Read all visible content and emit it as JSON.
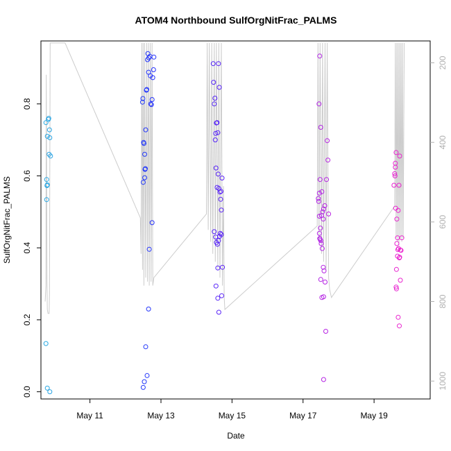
{
  "chart_data": {
    "type": "scatter",
    "title": "ATOM4 Northbound SulfOrgNitFrac_PALMS",
    "xlabel": "Date",
    "ylabel": "SulfOrgNitFrac_PALMS",
    "xlim": [
      9.62,
      20.58
    ],
    "ylim": [
      -0.02,
      0.975
    ],
    "y2lim": [
      1045,
      145
    ],
    "x_ticks": [
      {
        "value": 11,
        "label": "May 11"
      },
      {
        "value": 13,
        "label": "May 13"
      },
      {
        "value": 15,
        "label": "May 15"
      },
      {
        "value": 17,
        "label": "May 17"
      },
      {
        "value": 19,
        "label": "May 19"
      }
    ],
    "y_ticks": [
      {
        "value": 0.0,
        "label": "0.0"
      },
      {
        "value": 0.2,
        "label": "0.2"
      },
      {
        "value": 0.4,
        "label": "0.4"
      },
      {
        "value": 0.6,
        "label": "0.6"
      },
      {
        "value": 0.8,
        "label": "0.8"
      }
    ],
    "y2_ticks": [
      {
        "value": 200,
        "label": "200"
      },
      {
        "value": 400,
        "label": "400"
      },
      {
        "value": 600,
        "label": "600"
      },
      {
        "value": 800,
        "label": "800"
      },
      {
        "value": 1000,
        "label": "1000"
      }
    ],
    "grid": false,
    "legend": "none",
    "point_style": "open-circle",
    "color_scale": [
      "#29abe2",
      "#2222ff",
      "#9922ee",
      "#ee22cc"
    ],
    "line_color": "#cccccc",
    "points": [
      [
        9.76,
        0.748
      ],
      [
        9.79,
        0.573
      ],
      [
        9.8,
        0.71
      ],
      [
        9.83,
        0.757
      ],
      [
        9.84,
        0.76
      ],
      [
        9.86,
        0.728
      ],
      [
        9.78,
        0.59
      ],
      [
        9.8,
        0.575
      ],
      [
        9.85,
        0.66
      ],
      [
        9.87,
        0.706
      ],
      [
        9.89,
        0.655
      ],
      [
        9.78,
        0.534
      ],
      [
        9.76,
        0.134
      ],
      [
        9.8,
        0.01
      ],
      [
        9.87,
        0.0
      ],
      [
        12.48,
        0.805
      ],
      [
        12.49,
        0.815
      ],
      [
        12.51,
        0.693
      ],
      [
        12.52,
        0.69
      ],
      [
        12.54,
        0.66
      ],
      [
        12.55,
        0.618
      ],
      [
        12.56,
        0.62
      ],
      [
        12.57,
        0.728
      ],
      [
        12.59,
        0.838
      ],
      [
        12.6,
        0.84
      ],
      [
        12.62,
        0.923
      ],
      [
        12.63,
        0.94
      ],
      [
        12.65,
        0.888
      ],
      [
        12.66,
        0.928
      ],
      [
        12.69,
        0.932
      ],
      [
        12.7,
        0.878
      ],
      [
        12.71,
        0.8
      ],
      [
        12.73,
        0.798
      ],
      [
        12.75,
        0.812
      ],
      [
        12.77,
        0.873
      ],
      [
        12.79,
        0.895
      ],
      [
        12.8,
        0.93
      ],
      [
        12.5,
        0.582
      ],
      [
        12.54,
        0.595
      ],
      [
        12.67,
        0.396
      ],
      [
        12.75,
        0.47
      ],
      [
        12.65,
        0.23
      ],
      [
        12.57,
        0.125
      ],
      [
        12.61,
        0.045
      ],
      [
        12.53,
        0.028
      ],
      [
        12.5,
        0.012
      ],
      [
        14.47,
        0.912
      ],
      [
        14.48,
        0.86
      ],
      [
        14.5,
        0.8
      ],
      [
        14.52,
        0.816
      ],
      [
        14.53,
        0.7
      ],
      [
        14.54,
        0.718
      ],
      [
        14.56,
        0.747
      ],
      [
        14.58,
        0.748
      ],
      [
        14.6,
        0.72
      ],
      [
        14.62,
        0.912
      ],
      [
        14.64,
        0.846
      ],
      [
        14.55,
        0.622
      ],
      [
        14.58,
        0.568
      ],
      [
        14.61,
        0.605
      ],
      [
        14.63,
        0.565
      ],
      [
        14.66,
        0.555
      ],
      [
        14.68,
        0.535
      ],
      [
        14.7,
        0.505
      ],
      [
        14.72,
        0.594
      ],
      [
        14.69,
        0.557
      ],
      [
        14.5,
        0.445
      ],
      [
        14.54,
        0.43
      ],
      [
        14.56,
        0.415
      ],
      [
        14.59,
        0.41
      ],
      [
        14.62,
        0.42
      ],
      [
        14.65,
        0.432
      ],
      [
        14.67,
        0.44
      ],
      [
        14.7,
        0.437
      ],
      [
        14.6,
        0.344
      ],
      [
        14.73,
        0.346
      ],
      [
        14.55,
        0.294
      ],
      [
        14.6,
        0.26
      ],
      [
        14.71,
        0.267
      ],
      [
        14.63,
        0.221
      ]
    ],
    "points_b": [
      [
        17.43,
        0.537
      ],
      [
        17.45,
        0.8
      ],
      [
        17.47,
        0.933
      ],
      [
        17.5,
        0.735
      ],
      [
        17.46,
        0.552
      ],
      [
        17.44,
        0.529
      ],
      [
        17.46,
        0.488
      ],
      [
        17.52,
        0.49
      ],
      [
        17.55,
        0.5
      ],
      [
        17.58,
        0.508
      ],
      [
        17.61,
        0.517
      ],
      [
        17.48,
        0.59
      ],
      [
        17.53,
        0.556
      ],
      [
        17.57,
        0.48
      ],
      [
        17.49,
        0.455
      ],
      [
        17.46,
        0.44
      ],
      [
        17.48,
        0.424
      ],
      [
        17.5,
        0.42
      ],
      [
        17.47,
        0.426
      ],
      [
        17.51,
        0.412
      ],
      [
        17.54,
        0.398
      ],
      [
        17.57,
        0.346
      ],
      [
        17.59,
        0.336
      ],
      [
        17.5,
        0.312
      ],
      [
        17.62,
        0.305
      ],
      [
        17.53,
        0.262
      ],
      [
        17.58,
        0.264
      ],
      [
        17.7,
        0.644
      ],
      [
        17.68,
        0.698
      ],
      [
        17.66,
        0.59
      ],
      [
        17.72,
        0.494
      ],
      [
        17.64,
        0.168
      ],
      [
        17.58,
        0.034
      ],
      [
        19.56,
        0.574
      ],
      [
        19.58,
        0.606
      ],
      [
        19.6,
        0.635
      ],
      [
        19.62,
        0.665
      ],
      [
        19.59,
        0.6
      ],
      [
        19.6,
        0.624
      ],
      [
        19.61,
        0.51
      ],
      [
        19.64,
        0.48
      ],
      [
        19.66,
        0.428
      ],
      [
        19.68,
        0.504
      ],
      [
        19.7,
        0.574
      ],
      [
        19.72,
        0.655
      ],
      [
        19.64,
        0.412
      ],
      [
        19.67,
        0.395
      ],
      [
        19.69,
        0.398
      ],
      [
        19.72,
        0.374
      ],
      [
        19.74,
        0.394
      ],
      [
        19.66,
        0.377
      ],
      [
        19.71,
        0.372
      ],
      [
        19.76,
        0.393
      ],
      [
        19.78,
        0.428
      ],
      [
        19.63,
        0.34
      ],
      [
        19.74,
        0.31
      ],
      [
        19.62,
        0.291
      ],
      [
        19.63,
        0.286
      ],
      [
        19.68,
        0.207
      ],
      [
        19.71,
        0.183
      ]
    ],
    "altitude_track": [
      [
        9.74,
        800
      ],
      [
        9.76,
        760
      ],
      [
        9.77,
        230
      ],
      [
        9.79,
        750
      ],
      [
        9.8,
        820
      ],
      [
        9.82,
        830
      ],
      [
        9.85,
        830
      ],
      [
        9.86,
        780
      ],
      [
        9.88,
        150
      ],
      [
        10.3,
        150
      ],
      [
        12.42,
        590
      ],
      [
        12.44,
        680
      ],
      [
        12.46,
        150
      ],
      [
        12.48,
        720
      ],
      [
        12.5,
        150
      ],
      [
        12.52,
        760
      ],
      [
        12.54,
        150
      ],
      [
        12.57,
        740
      ],
      [
        12.6,
        150
      ],
      [
        12.62,
        750
      ],
      [
        12.65,
        150
      ],
      [
        12.67,
        760
      ],
      [
        12.7,
        150
      ],
      [
        12.72,
        750
      ],
      [
        12.75,
        150
      ],
      [
        12.77,
        760
      ],
      [
        12.8,
        740
      ],
      [
        14.28,
        580
      ],
      [
        14.3,
        150
      ],
      [
        14.33,
        620
      ],
      [
        14.36,
        150
      ],
      [
        14.4,
        650
      ],
      [
        14.43,
        150
      ],
      [
        14.46,
        680
      ],
      [
        14.5,
        150
      ],
      [
        14.53,
        700
      ],
      [
        14.56,
        150
      ],
      [
        14.6,
        720
      ],
      [
        14.63,
        150
      ],
      [
        14.66,
        740
      ],
      [
        14.7,
        150
      ],
      [
        14.73,
        760
      ],
      [
        14.76,
        510
      ],
      [
        14.78,
        790
      ],
      [
        14.8,
        820
      ],
      [
        17.4,
        610
      ],
      [
        17.42,
        150
      ],
      [
        17.45,
        650
      ],
      [
        17.48,
        150
      ],
      [
        17.52,
        680
      ],
      [
        17.55,
        150
      ],
      [
        17.58,
        700
      ],
      [
        17.62,
        150
      ],
      [
        17.65,
        720
      ],
      [
        17.68,
        150
      ],
      [
        17.72,
        740
      ],
      [
        17.75,
        770
      ],
      [
        17.8,
        790
      ],
      [
        19.58,
        560
      ],
      [
        19.6,
        150
      ],
      [
        19.62,
        640
      ],
      [
        19.64,
        150
      ],
      [
        19.66,
        650
      ],
      [
        19.68,
        150
      ],
      [
        19.7,
        660
      ],
      [
        19.72,
        150
      ],
      [
        19.74,
        640
      ],
      [
        19.76,
        150
      ],
      [
        19.78,
        650
      ],
      [
        19.8,
        150
      ],
      [
        19.82,
        640
      ],
      [
        19.85,
        150
      ]
    ]
  }
}
